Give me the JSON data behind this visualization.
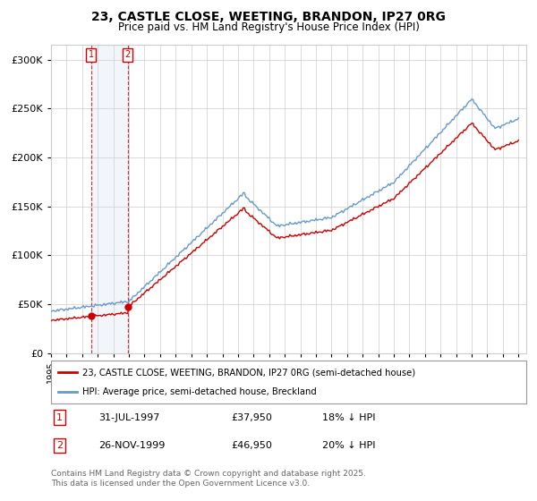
{
  "title": "23, CASTLE CLOSE, WEETING, BRANDON, IP27 0RG",
  "subtitle": "Price paid vs. HM Land Registry's House Price Index (HPI)",
  "yticks": [
    0,
    50000,
    100000,
    150000,
    200000,
    250000,
    300000
  ],
  "ytick_labels": [
    "£0",
    "£50K",
    "£100K",
    "£150K",
    "£200K",
    "£250K",
    "£300K"
  ],
  "ylim": [
    0,
    315000
  ],
  "marker1_year": 1997.58,
  "marker1_price": 37950,
  "marker2_year": 1999.92,
  "marker2_price": 46950,
  "legend1": "23, CASTLE CLOSE, WEETING, BRANDON, IP27 0RG (semi-detached house)",
  "legend2": "HPI: Average price, semi-detached house, Breckland",
  "footer": "Contains HM Land Registry data © Crown copyright and database right 2025.\nThis data is licensed under the Open Government Licence v3.0.",
  "line_color_red": "#cc0000",
  "line_color_blue": "#6699cc",
  "background_color": "#ffffff",
  "grid_color": "#cccccc",
  "highlight_color": "#ccddf0"
}
